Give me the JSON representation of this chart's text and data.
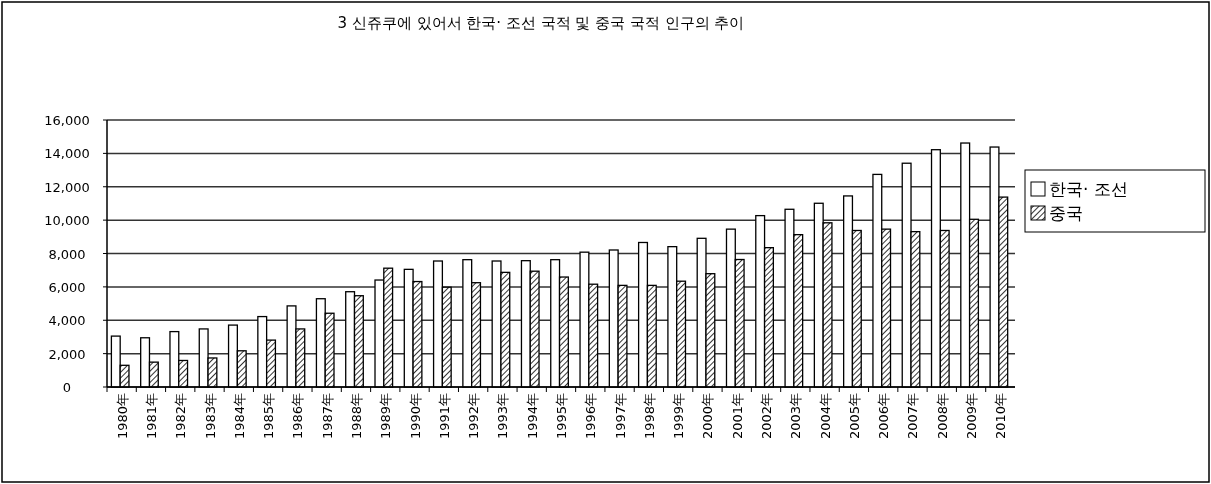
{
  "chart_data": {
    "type": "bar",
    "title": "3 신쥬쿠에 있어서 한국· 조선 국적 및 중국 국적 인구의 추이",
    "categories": [
      "1980年",
      "1981年",
      "1982年",
      "1983年",
      "1984年",
      "1985年",
      "1986年",
      "1987年",
      "1988年",
      "1989年",
      "1990年",
      "1991年",
      "1992年",
      "1993年",
      "1994年",
      "1995年",
      "1996年",
      "1997年",
      "1998年",
      "1999年",
      "2000年",
      "2001年",
      "2002年",
      "2003年",
      "2004年",
      "2005年",
      "2006年",
      "2007年",
      "2008年",
      "2009年",
      "2010年"
    ],
    "series": [
      {
        "name": "한국· 조선",
        "color": "#ffffff",
        "values": [
          3050,
          2950,
          3320,
          3480,
          3710,
          4220,
          4860,
          5290,
          5710,
          6410,
          7050,
          7550,
          7630,
          7550,
          7570,
          7630,
          8080,
          8210,
          8660,
          8410,
          8910,
          9460,
          10270,
          10650,
          11010,
          11450,
          12740,
          13410,
          14220,
          14620,
          14380
        ]
      },
      {
        "name": "중국",
        "color": "#000000",
        "values": [
          1300,
          1490,
          1590,
          1740,
          2170,
          2810,
          3480,
          4420,
          5470,
          7120,
          6320,
          5980,
          6250,
          6870,
          6940,
          6590,
          6160,
          6090,
          6090,
          6340,
          6790,
          7640,
          8350,
          9130,
          9840,
          9380,
          9460,
          9310,
          9380,
          10050,
          11380
        ]
      }
    ],
    "ylim": [
      0,
      16000
    ],
    "yticks": [
      {
        "value": 0,
        "label": "0"
      },
      {
        "value": 2000,
        "label": "2,000"
      },
      {
        "value": 4000,
        "label": "4,000"
      },
      {
        "value": 6000,
        "label": "6,000"
      },
      {
        "value": 8000,
        "label": "8,000"
      },
      {
        "value": 10000,
        "label": "10,000"
      },
      {
        "value": 12000,
        "label": "12,000"
      },
      {
        "value": 14000,
        "label": "14,000"
      },
      {
        "value": 16000,
        "label": "16,000"
      }
    ],
    "grid": "y",
    "legend": "right"
  }
}
